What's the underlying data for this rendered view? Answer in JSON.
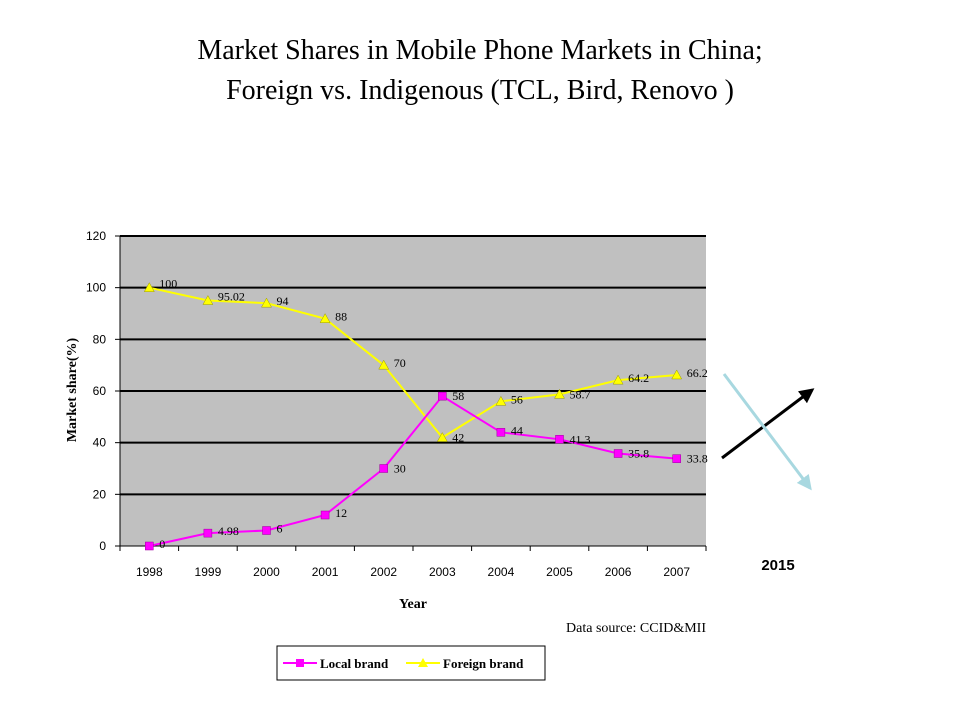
{
  "title_line1": "Market Shares in Mobile Phone Markets in China;",
  "title_line2": "Foreign vs.  Indigenous  (TCL, Bird, Renovo )",
  "chart_data": {
    "type": "line",
    "x": [
      "1998",
      "1999",
      "2000",
      "2001",
      "2002",
      "2003",
      "2004",
      "2005",
      "2006",
      "2007"
    ],
    "series": [
      {
        "name": "Local brand",
        "color": "#ff00ff",
        "marker": "square",
        "values": [
          0,
          4.98,
          6,
          12,
          30,
          58,
          44,
          41.3,
          35.8,
          33.8
        ],
        "labels": [
          "0",
          "4.98",
          "6",
          "12",
          "30",
          "58",
          "44",
          "41.3",
          "35.8",
          "33.8"
        ]
      },
      {
        "name": "Foreign brand",
        "color": "#ffff00",
        "marker": "triangle",
        "values": [
          100,
          95.02,
          94,
          88,
          70,
          42,
          56,
          58.7,
          64.2,
          66.2
        ],
        "labels": [
          "100",
          "95.02",
          "94",
          "88",
          "70",
          "42",
          "56",
          "58.7",
          "64.2",
          "66.2"
        ]
      }
    ],
    "xlabel": "Year",
    "ylabel": "Market share(%)",
    "ylim": [
      0,
      120
    ],
    "yticks": [
      "0",
      "20",
      "40",
      "60",
      "80",
      "100",
      "120"
    ],
    "grid": true,
    "plot_background": "#c0c0c0",
    "source": "Data source: CCID&MII",
    "legend_position": "bottom"
  },
  "annotation": {
    "label": "2015",
    "rising_arrow_color": "#000000",
    "falling_arrow_color": "#a8d8e0"
  }
}
